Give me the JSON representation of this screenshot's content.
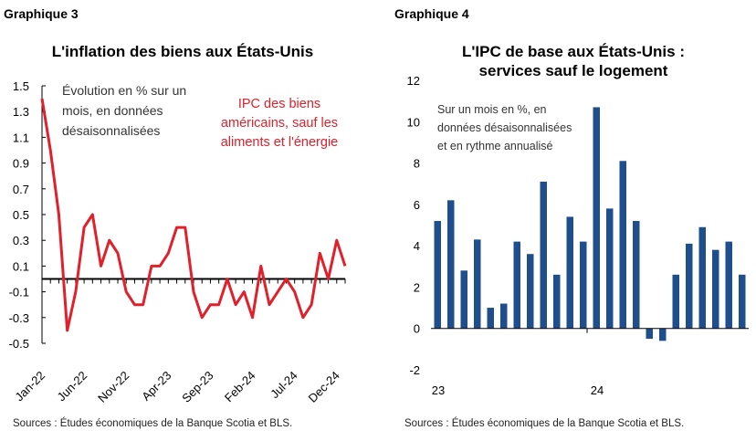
{
  "panels": [
    {
      "label": "Graphique 3",
      "title": "L'inflation des biens aux États-Unis",
      "source": "Sources : Études économiques de la Banque Scotia et BLS."
    },
    {
      "label": "Graphique 4",
      "title_line1": "L'IPC de base aux États-Unis :",
      "title_line2": "services sauf le logement",
      "source": "Sources : Études économiques de la Banque Scotia et BLS."
    }
  ],
  "chart_data": [
    {
      "type": "line",
      "title": "L'inflation des biens aux États-Unis",
      "annotation": [
        "Évolution en % sur un",
        "mois, en données",
        "désaisonnalisées"
      ],
      "series_label": [
        "IPC des biens",
        "américains, sauf les",
        "aliments et l'énergie"
      ],
      "series_color": "#e0202a",
      "ylim": [
        -0.5,
        1.5
      ],
      "yticks": [
        1.5,
        1.3,
        1.1,
        0.9,
        0.7,
        0.5,
        0.3,
        0.1,
        -0.1,
        -0.3,
        -0.5
      ],
      "ytick_labels": [
        "1.5",
        "1.3",
        "1.1",
        "0.9",
        "0.7",
        "0.5",
        "0.3",
        "0.1",
        "-0.1",
        "-0.3",
        "-0.5"
      ],
      "xtick_labels": [
        "Jan-22",
        "Jun-22",
        "Nov-22",
        "Apr-23",
        "Sep-23",
        "Feb-24",
        "Jul-24",
        "Dec-24"
      ],
      "xtick_index": [
        0,
        5,
        10,
        15,
        20,
        25,
        30,
        35
      ],
      "x": [
        "Jan-22",
        "Feb-22",
        "Mar-22",
        "Apr-22",
        "May-22",
        "Jun-22",
        "Jul-22",
        "Aug-22",
        "Sep-22",
        "Oct-22",
        "Nov-22",
        "Dec-22",
        "Jan-23",
        "Feb-23",
        "Mar-23",
        "Apr-23",
        "May-23",
        "Jun-23",
        "Jul-23",
        "Aug-23",
        "Sep-23",
        "Oct-23",
        "Nov-23",
        "Dec-23",
        "Jan-24",
        "Feb-24",
        "Mar-24",
        "Apr-24",
        "May-24",
        "Jun-24",
        "Jul-24",
        "Aug-24",
        "Sep-24",
        "Oct-24",
        "Nov-24",
        "Dec-24",
        "Jan-25"
      ],
      "values": [
        1.4,
        1.0,
        0.5,
        -0.4,
        -0.1,
        0.4,
        0.5,
        0.1,
        0.3,
        0.2,
        -0.1,
        -0.2,
        -0.2,
        0.1,
        0.1,
        0.2,
        0.4,
        0.4,
        -0.1,
        -0.3,
        -0.2,
        -0.2,
        0.0,
        -0.2,
        -0.1,
        -0.3,
        0.1,
        -0.2,
        -0.1,
        0.0,
        -0.1,
        -0.3,
        -0.2,
        0.2,
        0.0,
        0.3,
        0.1
      ]
    },
    {
      "type": "bar",
      "title": "L'IPC de base aux États-Unis : services sauf le logement",
      "annotation": [
        "Sur un mois en %, en",
        "données désaisonnalisées",
        "et en rythme annualisé"
      ],
      "bar_color": "#1f4e8c",
      "ylim": [
        -2,
        12
      ],
      "yticks": [
        12,
        10,
        8,
        6,
        4,
        2,
        0,
        -2
      ],
      "ytick_labels": [
        "12",
        "10",
        "8",
        "6",
        "4",
        "2",
        "0",
        "-2"
      ],
      "xtick_labels": [
        "23",
        "24"
      ],
      "xtick_index": [
        0,
        12
      ],
      "values": [
        5.2,
        6.2,
        2.8,
        4.3,
        1.0,
        1.2,
        4.2,
        3.6,
        7.1,
        2.6,
        5.4,
        4.2,
        10.7,
        5.8,
        8.1,
        5.2,
        -0.5,
        -0.6,
        2.6,
        4.1,
        4.9,
        3.8,
        4.2,
        2.6
      ]
    }
  ]
}
